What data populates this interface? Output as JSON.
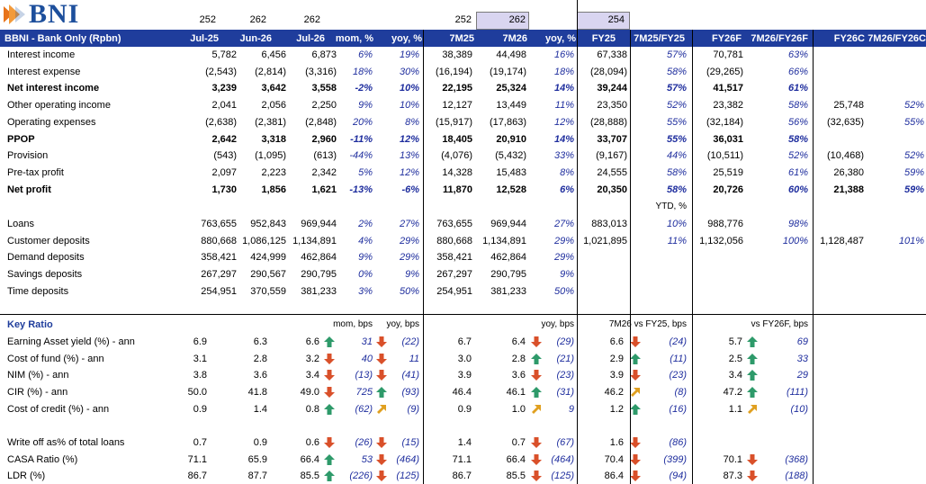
{
  "logo": {
    "text": "BNI"
  },
  "top_numbers": [
    "252",
    "262",
    "262",
    "252",
    "262",
    "254"
  ],
  "header": [
    "BBNI - Bank Only (Rpbn)",
    "Jul-25",
    "Jun-26",
    "Jul-26",
    "mom, %",
    "yoy, %",
    "7M25",
    "7M26",
    "yoy, %",
    "FY25",
    "7M25/FY25",
    "FY26F",
    "7M26/FY26F",
    "FY26C",
    "7M26/FY26C"
  ],
  "income_rows": [
    {
      "label": "Interest income",
      "bold": false,
      "v": [
        "5,782",
        "6,456",
        "6,873",
        "6%",
        "19%",
        "38,389",
        "44,498",
        "16%",
        "67,338",
        "57%",
        "70,781",
        "63%",
        "",
        ""
      ]
    },
    {
      "label": "Interest expense",
      "bold": false,
      "v": [
        "(2,543)",
        "(2,814)",
        "(3,316)",
        "18%",
        "30%",
        "(16,194)",
        "(19,174)",
        "18%",
        "(28,094)",
        "58%",
        "(29,265)",
        "66%",
        "",
        ""
      ]
    },
    {
      "label": "Net interest income",
      "bold": true,
      "v": [
        "3,239",
        "3,642",
        "3,558",
        "-2%",
        "10%",
        "22,195",
        "25,324",
        "14%",
        "39,244",
        "57%",
        "41,517",
        "61%",
        "",
        ""
      ]
    },
    {
      "label": "Other operating income",
      "bold": false,
      "v": [
        "2,041",
        "2,056",
        "2,250",
        "9%",
        "10%",
        "12,127",
        "13,449",
        "11%",
        "23,350",
        "52%",
        "23,382",
        "58%",
        "25,748",
        "52%"
      ]
    },
    {
      "label": "Operating expenses",
      "bold": false,
      "v": [
        "(2,638)",
        "(2,381)",
        "(2,848)",
        "20%",
        "8%",
        "(15,917)",
        "(17,863)",
        "12%",
        "(28,888)",
        "55%",
        "(32,184)",
        "56%",
        "(32,635)",
        "55%"
      ]
    },
    {
      "label": "PPOP",
      "bold": true,
      "v": [
        "2,642",
        "3,318",
        "2,960",
        "-11%",
        "12%",
        "18,405",
        "20,910",
        "14%",
        "33,707",
        "55%",
        "36,031",
        "58%",
        "",
        ""
      ]
    },
    {
      "label": "Provision",
      "bold": false,
      "v": [
        "(543)",
        "(1,095)",
        "(613)",
        "-44%",
        "13%",
        "(4,076)",
        "(5,432)",
        "33%",
        "(9,167)",
        "44%",
        "(10,511)",
        "52%",
        "(10,468)",
        "52%"
      ]
    },
    {
      "label": "Pre-tax profit",
      "bold": false,
      "v": [
        "2,097",
        "2,223",
        "2,342",
        "5%",
        "12%",
        "14,328",
        "15,483",
        "8%",
        "24,555",
        "58%",
        "25,519",
        "61%",
        "26,380",
        "59%"
      ]
    },
    {
      "label": "Net profit",
      "bold": true,
      "v": [
        "1,730",
        "1,856",
        "1,621",
        "-13%",
        "-6%",
        "11,870",
        "12,528",
        "6%",
        "20,350",
        "58%",
        "20,726",
        "60%",
        "21,388",
        "59%"
      ]
    }
  ],
  "ytd_label": "YTD, %",
  "balance_rows": [
    {
      "label": "Loans",
      "v": [
        "763,655",
        "952,843",
        "969,944",
        "2%",
        "27%",
        "763,655",
        "969,944",
        "27%",
        "883,013",
        "10%",
        "988,776",
        "98%",
        "",
        ""
      ]
    },
    {
      "label": "Customer deposits",
      "v": [
        "880,668",
        "1,086,125",
        "1,134,891",
        "4%",
        "29%",
        "880,668",
        "1,134,891",
        "29%",
        "1,021,895",
        "11%",
        "1,132,056",
        "100%",
        "1,128,487",
        "101%"
      ]
    },
    {
      "label": "Demand deposits",
      "v": [
        "358,421",
        "424,999",
        "462,864",
        "9%",
        "29%",
        "358,421",
        "462,864",
        "29%",
        "",
        "",
        "",
        "",
        "",
        ""
      ]
    },
    {
      "label": "Savings deposits",
      "v": [
        "267,297",
        "290,567",
        "290,795",
        "0%",
        "9%",
        "267,297",
        "290,795",
        "9%",
        "",
        "",
        "",
        "",
        "",
        ""
      ]
    },
    {
      "label": "Time deposits",
      "v": [
        "254,951",
        "370,559",
        "381,233",
        "3%",
        "50%",
        "254,951",
        "381,233",
        "50%",
        "",
        "",
        "",
        "",
        "",
        ""
      ]
    }
  ],
  "ratio_section": {
    "title": "Key Ratio",
    "sub_headers": [
      "mom, bps",
      "yoy, bps",
      "yoy, bps",
      "7M26 vs FY25, bps",
      "vs FY26F, bps"
    ]
  },
  "ratio_rows": [
    {
      "label": "Earning Asset yield (%) - ann",
      "v": [
        "6.9",
        "6.3",
        "6.6",
        "31",
        "(22)",
        "6.7",
        "6.4",
        "(29)",
        "6.6",
        "(24)",
        "5.7",
        "69"
      ],
      "a": [
        "up",
        "down",
        "down",
        "down",
        "up"
      ]
    },
    {
      "label": "Cost of fund (%) - ann",
      "v": [
        "3.1",
        "2.8",
        "3.2",
        "40",
        "11",
        "3.0",
        "2.8",
        "(21)",
        "2.9",
        "(11)",
        "2.5",
        "33"
      ],
      "a": [
        "down",
        "down",
        "up",
        "up",
        "up"
      ]
    },
    {
      "label": "NIM (%) - ann",
      "v": [
        "3.8",
        "3.6",
        "3.4",
        "(13)",
        "(41)",
        "3.9",
        "3.6",
        "(23)",
        "3.9",
        "(23)",
        "3.4",
        "29"
      ],
      "a": [
        "down",
        "down",
        "down",
        "down",
        "up"
      ]
    },
    {
      "label": "CIR (%) - ann",
      "v": [
        "50.0",
        "41.8",
        "49.0",
        "725",
        "(93)",
        "46.4",
        "46.1",
        "(31)",
        "46.2",
        "(8)",
        "47.2",
        "(111)"
      ],
      "a": [
        "down",
        "up",
        "up",
        "flat",
        "up"
      ]
    },
    {
      "label": "Cost of credit (%) - ann",
      "v": [
        "0.9",
        "1.4",
        "0.8",
        "(62)",
        "(9)",
        "0.9",
        "1.0",
        "9",
        "1.2",
        "(16)",
        "1.1",
        "(10)"
      ],
      "a": [
        "up",
        "flat",
        "flat",
        "up",
        "flat"
      ]
    },
    {
      "label": "Write off as% of total loans",
      "v": [
        "0.7",
        "0.9",
        "0.6",
        "(26)",
        "(15)",
        "1.4",
        "0.7",
        "(67)",
        "1.6",
        "(86)",
        "",
        ""
      ],
      "a": [
        "down",
        "down",
        "down",
        "down",
        ""
      ]
    },
    {
      "label": "CASA Ratio (%)",
      "v": [
        "71.1",
        "65.9",
        "66.4",
        "53",
        "(464)",
        "71.1",
        "66.4",
        "(464)",
        "70.4",
        "(399)",
        "70.1",
        "(368)"
      ],
      "a": [
        "up",
        "down",
        "down",
        "down",
        "down"
      ]
    },
    {
      "label": "LDR (%)",
      "v": [
        "86.7",
        "87.7",
        "85.5",
        "(226)",
        "(125)",
        "86.7",
        "85.5",
        "(125)",
        "86.4",
        "(94)",
        "87.3",
        "(188)"
      ],
      "a": [
        "up",
        "down",
        "down",
        "down",
        "down"
      ]
    }
  ],
  "colors": {
    "header_bg": "#1f3d9c",
    "accent_text": "#1f2e9e",
    "arrow_up": "#2e9a6a",
    "arrow_down": "#d9502a",
    "arrow_flat": "#e0a020",
    "shade": "#d9d5f0"
  },
  "arrow_icons": {
    "up": "up-arrow-icon",
    "down": "down-arrow-icon",
    "flat": "diagonal-arrow-icon"
  }
}
